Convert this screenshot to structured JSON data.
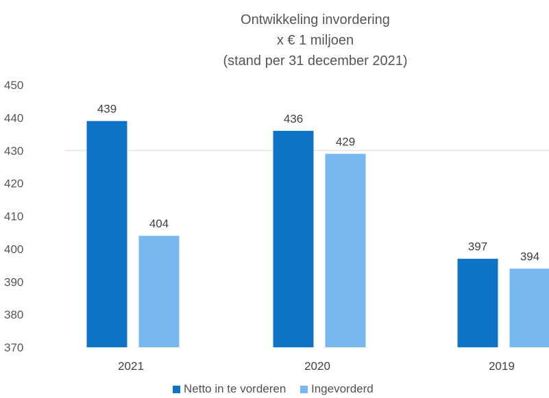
{
  "chart_data": {
    "type": "bar",
    "title": "Ontwikkeling invordering",
    "subtitle_lines": [
      "x € 1 miljoen",
      "(stand per 31 december 2021)"
    ],
    "categories": [
      "2021",
      "2020",
      "2019"
    ],
    "series": [
      {
        "name": "Netto in te vorderen",
        "values": [
          439,
          436,
          397
        ],
        "color": "#0f73c6"
      },
      {
        "name": "Ingevorderd",
        "values": [
          404,
          429,
          394
        ],
        "color": "#79b8ef"
      }
    ],
    "ylim": [
      370,
      450
    ],
    "yticks": [
      "370",
      "380",
      "390",
      "400",
      "410",
      "420",
      "430",
      "440",
      "450"
    ],
    "gridline_value": 430,
    "legend_position": "bottom",
    "data_labels": true
  }
}
